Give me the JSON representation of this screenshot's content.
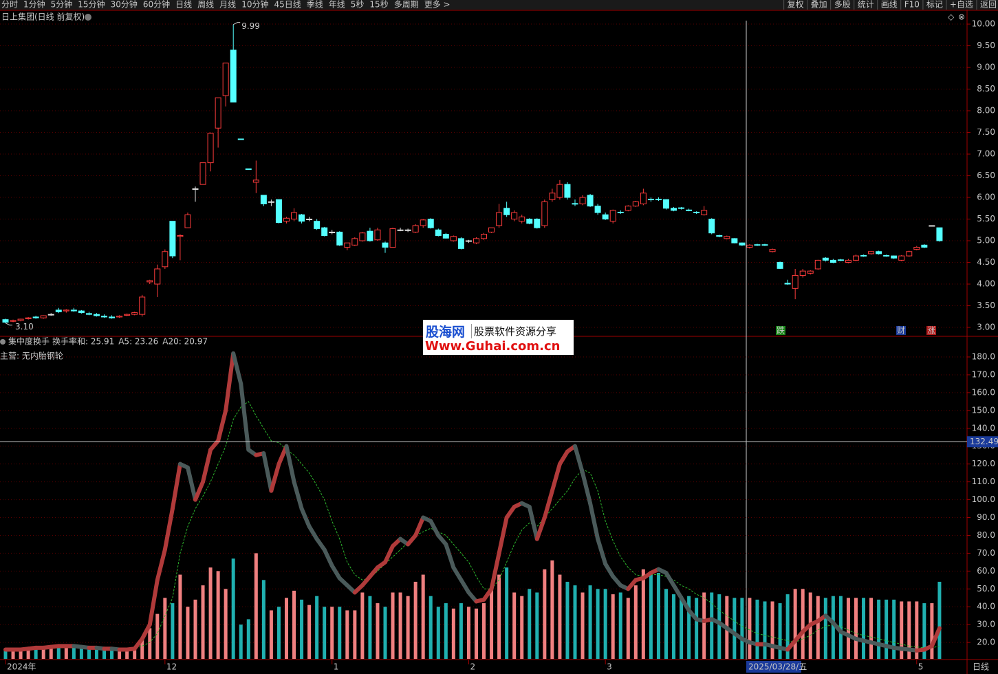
{
  "toolbar": {
    "tabs": [
      "分时",
      "1分钟",
      "5分钟",
      "15分钟",
      "30分钟",
      "60分钟",
      "日线",
      "周线",
      "月线",
      "10分钟",
      "45日线",
      "季线",
      "年线",
      "5秒",
      "15秒",
      "多周期",
      "更多 >"
    ],
    "tools": [
      "复权",
      "叠加",
      "多股",
      "统计",
      "画线",
      "F10",
      "标记",
      "+自选",
      "返回"
    ]
  },
  "period_label": "日线",
  "watermark": {
    "brand": "股海网",
    "slogan": "股票软件资源分享",
    "url": "Www.Guhai.com.cn"
  },
  "chart_data": [
    {
      "type": "candlestick",
      "title": "日上集团(日线 前复权)",
      "categories": [
        "2024年",
        null,
        null,
        null,
        null,
        null,
        null,
        null,
        null,
        null,
        null,
        null,
        null,
        null,
        null,
        null,
        null,
        null,
        null,
        null,
        null,
        "12",
        null,
        null,
        null,
        null,
        null,
        null,
        null,
        null,
        null,
        null,
        null,
        null,
        null,
        null,
        null,
        null,
        null,
        null,
        null,
        null,
        null,
        "1",
        null,
        null,
        null,
        null,
        null,
        null,
        null,
        null,
        null,
        null,
        null,
        null,
        null,
        null,
        null,
        null,
        null,
        "2",
        null,
        null,
        null,
        null,
        null,
        null,
        null,
        null,
        null,
        null,
        null,
        null,
        null,
        null,
        null,
        null,
        null,
        "3",
        null,
        null,
        null,
        null,
        null,
        null,
        null,
        null,
        null,
        null,
        null,
        null,
        null,
        null,
        null,
        null,
        null,
        null,
        null,
        null,
        null,
        null,
        null,
        null,
        null,
        null,
        null,
        null,
        null,
        null,
        null,
        null,
        null,
        null,
        null,
        null,
        null,
        null,
        null,
        null,
        "5",
        null,
        null,
        null
      ],
      "open": [
        3.18,
        3.14,
        3.16,
        3.2,
        3.24,
        3.22,
        3.3,
        3.4,
        3.38,
        3.4,
        3.38,
        3.32,
        3.3,
        3.26,
        3.24,
        3.24,
        3.28,
        3.3,
        3.3,
        4.05,
        4.0,
        4.4,
        5.45,
        5.1,
        5.3,
        6.2,
        6.3,
        6.8,
        7.6,
        8.35,
        9.4,
        7.35,
        6.66,
        6.35,
        6.05,
        5.9,
        5.95,
        5.45,
        5.5,
        5.6,
        5.5,
        5.45,
        5.3,
        5.2,
        5.2,
        4.85,
        4.9,
        5.0,
        5.22,
        5.02,
        4.95,
        4.85,
        5.25,
        5.25,
        5.2,
        5.35,
        5.5,
        5.25,
        5.15,
        5.0,
        5.05,
        5.0,
        4.95,
        5.05,
        5.2,
        5.35,
        5.75,
        5.5,
        5.45,
        5.5,
        5.5,
        5.35,
        5.95,
        6.0,
        6.3,
        5.86,
        5.85,
        6.05,
        5.8,
        5.6,
        5.45,
        5.66,
        5.7,
        5.8,
        5.85,
        5.96,
        5.96,
        5.95,
        5.75,
        5.76,
        5.71,
        5.66,
        5.6,
        5.5,
        5.12,
        5.05,
        5.05,
        4.95,
        4.85,
        4.91,
        4.91,
        4.75,
        4.5,
        4.02,
        3.9,
        4.2,
        4.25,
        4.35,
        4.6,
        4.55,
        4.56,
        4.5,
        4.55,
        4.66,
        4.7,
        4.75,
        4.66,
        4.65,
        4.55,
        4.65,
        4.8,
        4.9,
        5.35,
        5.3
      ],
      "high": [
        3.2,
        3.18,
        3.2,
        3.24,
        3.27,
        3.28,
        3.33,
        3.45,
        3.42,
        3.45,
        3.4,
        3.36,
        3.33,
        3.3,
        3.28,
        3.28,
        3.32,
        3.36,
        3.75,
        4.1,
        4.45,
        4.8,
        5.45,
        5.15,
        5.65,
        6.25,
        6.8,
        7.5,
        8.3,
        9.1,
        9.99,
        7.35,
        6.66,
        6.85,
        6.05,
        5.95,
        5.95,
        5.55,
        5.75,
        5.62,
        5.55,
        5.5,
        5.32,
        5.25,
        5.22,
        4.95,
        5.08,
        5.2,
        5.3,
        5.3,
        4.98,
        5.3,
        5.3,
        5.28,
        5.38,
        5.5,
        5.52,
        5.28,
        5.18,
        5.12,
        5.08,
        5.02,
        5.08,
        5.18,
        5.3,
        5.85,
        5.9,
        5.7,
        5.6,
        5.52,
        5.52,
        5.95,
        6.2,
        6.4,
        6.35,
        5.95,
        6.05,
        6.08,
        5.85,
        5.65,
        5.72,
        5.7,
        5.82,
        5.92,
        6.2,
        6.0,
        6.0,
        5.96,
        5.78,
        5.78,
        5.74,
        5.68,
        5.8,
        5.52,
        5.14,
        5.12,
        5.06,
        4.96,
        4.92,
        4.93,
        4.93,
        4.82,
        4.52,
        4.1,
        4.35,
        4.35,
        4.32,
        4.56,
        4.62,
        4.58,
        4.58,
        4.58,
        4.68,
        4.68,
        4.76,
        4.77,
        4.68,
        4.66,
        4.67,
        4.77,
        4.88,
        4.92,
        5.35,
        5.3
      ],
      "low": [
        3.1,
        3.12,
        3.14,
        3.18,
        3.2,
        3.2,
        3.27,
        3.33,
        3.34,
        3.36,
        3.32,
        3.28,
        3.25,
        3.22,
        3.2,
        3.22,
        3.26,
        3.28,
        3.25,
        4.0,
        3.7,
        4.35,
        4.6,
        4.55,
        5.3,
        5.9,
        6.3,
        6.6,
        7.15,
        8.1,
        8.2,
        7.33,
        6.64,
        6.1,
        5.8,
        5.8,
        5.4,
        5.4,
        5.45,
        5.4,
        5.45,
        5.25,
        5.1,
        5.15,
        4.88,
        4.78,
        4.88,
        4.98,
        4.98,
        5.0,
        4.72,
        4.85,
        5.22,
        5.2,
        5.18,
        5.3,
        5.28,
        5.1,
        5.05,
        4.98,
        4.8,
        4.95,
        4.92,
        5.02,
        5.18,
        5.3,
        5.55,
        5.45,
        5.4,
        5.38,
        5.28,
        5.3,
        5.9,
        5.95,
        5.95,
        5.8,
        5.82,
        5.78,
        5.6,
        5.48,
        5.4,
        5.62,
        5.68,
        5.78,
        5.82,
        5.9,
        5.92,
        5.72,
        5.68,
        5.72,
        5.68,
        5.62,
        5.58,
        5.15,
        5.08,
        5.03,
        4.94,
        4.88,
        4.82,
        4.88,
        4.88,
        4.73,
        4.35,
        3.98,
        3.65,
        4.15,
        4.22,
        4.33,
        4.52,
        4.48,
        4.53,
        4.48,
        4.53,
        4.63,
        4.68,
        4.68,
        4.63,
        4.58,
        4.53,
        4.63,
        4.78,
        4.83,
        5.34,
        4.98
      ],
      "close": [
        3.12,
        3.16,
        3.19,
        3.22,
        3.22,
        3.27,
        3.3,
        3.36,
        3.4,
        3.38,
        3.34,
        3.3,
        3.27,
        3.24,
        3.22,
        3.26,
        3.3,
        3.34,
        3.7,
        4.08,
        4.35,
        4.75,
        4.65,
        5.12,
        5.6,
        6.2,
        6.8,
        7.48,
        8.3,
        9.1,
        8.2,
        7.34,
        6.65,
        6.4,
        5.85,
        5.9,
        5.42,
        5.52,
        5.65,
        5.45,
        5.5,
        5.28,
        5.12,
        5.2,
        4.9,
        4.95,
        5.05,
        5.18,
        5.0,
        5.25,
        4.85,
        5.28,
        5.25,
        5.25,
        5.35,
        5.48,
        5.3,
        5.12,
        5.06,
        5.1,
        4.82,
        5.0,
        5.05,
        5.15,
        5.3,
        5.65,
        5.6,
        5.65,
        5.55,
        5.4,
        5.3,
        5.9,
        6.1,
        6.3,
        6.0,
        5.85,
        6.0,
        5.8,
        5.65,
        5.5,
        5.7,
        5.65,
        5.8,
        5.9,
        6.1,
        5.95,
        5.95,
        5.75,
        5.7,
        5.75,
        5.7,
        5.65,
        5.7,
        5.18,
        5.1,
        5.1,
        4.95,
        4.9,
        4.9,
        4.9,
        4.9,
        4.8,
        4.36,
        4.0,
        4.2,
        4.3,
        4.3,
        4.55,
        4.55,
        4.5,
        4.55,
        4.55,
        4.65,
        4.65,
        4.75,
        4.7,
        4.65,
        4.6,
        4.65,
        4.75,
        4.85,
        4.85,
        5.35,
        5.0
      ],
      "up_color": "#ff3c3c",
      "down_color": "#54ffff",
      "flat_color": "#e0e0e0",
      "ylim": [
        2.81,
        10.08
      ],
      "yticks": [
        {
          "value": 10,
          "label": "10.00"
        },
        {
          "value": 9.5,
          "label": "9.50"
        },
        {
          "value": 9,
          "label": "9.00"
        },
        {
          "value": 8.5,
          "label": "8.50"
        },
        {
          "value": 8,
          "label": "8.00"
        },
        {
          "value": 7.5,
          "label": "7.50"
        },
        {
          "value": 7,
          "label": "7.00"
        },
        {
          "value": 6.5,
          "label": "6.50"
        },
        {
          "value": 6,
          "label": "6.00"
        },
        {
          "value": 5.5,
          "label": "5.50"
        },
        {
          "value": 5,
          "label": "5.00"
        },
        {
          "value": 4.5,
          "label": "4.50"
        },
        {
          "value": 4,
          "label": "4.00"
        },
        {
          "value": 3.5,
          "label": "3.50"
        },
        {
          "value": 3,
          "label": "3.00"
        }
      ],
      "grid": true,
      "high_label": "9.99",
      "low_label": "3.10",
      "events": [
        "跌",
        "财",
        "涨"
      ],
      "crosshair_label": "2025/03/28/五"
    },
    {
      "type": "turnover",
      "title": "集中度换手",
      "legend": [
        {
          "text": "换手率和: 25.91",
          "color": "#e8e8e8"
        },
        {
          "text": "A5: 23.26",
          "color": "#ff4040"
        },
        {
          "text": "A20: 20.97",
          "color": "#40d040"
        }
      ],
      "note": "主营: 无内胎钢轮",
      "values": [
        16,
        17,
        16,
        17,
        18,
        17,
        17,
        18,
        18,
        18,
        17,
        17,
        16,
        17,
        17,
        16,
        17,
        17,
        22,
        28,
        36,
        45,
        42,
        58,
        40,
        44,
        52,
        62,
        60,
        50,
        67,
        30,
        33,
        70,
        55,
        38,
        40,
        45,
        49,
        44,
        41,
        46,
        40,
        40,
        40,
        38,
        38,
        48,
        46,
        42,
        40,
        48,
        48,
        46,
        54,
        58,
        46,
        40,
        42,
        39,
        42,
        40,
        39,
        42,
        50,
        58,
        62,
        48,
        46,
        50,
        48,
        61,
        66,
        58,
        54,
        52,
        48,
        52,
        50,
        50,
        47,
        48,
        45,
        52,
        61,
        58,
        59,
        50,
        47,
        46,
        46,
        45,
        48,
        48,
        47,
        46,
        45,
        45,
        45,
        44,
        43,
        43,
        42,
        47,
        50,
        50,
        48,
        46,
        45,
        46,
        46,
        45,
        45,
        45,
        45,
        44,
        44,
        44,
        43,
        43,
        43,
        42,
        42,
        54
      ],
      "up_color": "#f08080",
      "down_color": "#20b0b0",
      "series": [
        {
          "name": "A5",
          "color": "#b03a3a",
          "fall_color": "#4a5a5a",
          "values": [
            16,
            16,
            16,
            16.5,
            17,
            17,
            17.5,
            18,
            18,
            18,
            17.5,
            17,
            17,
            16.5,
            16.5,
            16,
            16,
            16.5,
            22,
            30,
            55,
            72,
            95,
            120,
            118,
            100,
            110,
            128,
            133,
            150,
            182,
            165,
            128,
            125,
            126,
            105,
            120,
            130,
            110,
            95,
            85,
            78,
            72,
            63,
            56,
            52,
            48,
            52,
            57,
            62,
            65,
            74,
            78,
            75,
            80,
            90,
            88,
            80,
            75,
            62,
            55,
            48,
            43,
            44,
            50,
            70,
            90,
            96,
            98,
            96,
            78,
            90,
            105,
            120,
            127,
            130,
            115,
            98,
            78,
            64,
            57,
            52,
            50,
            55,
            56,
            59,
            61,
            59,
            52,
            45,
            38,
            33,
            32,
            33,
            31,
            28,
            25,
            22,
            20,
            19,
            19,
            18,
            17,
            16,
            21,
            26,
            30,
            32,
            35,
            31,
            26,
            24,
            22,
            21,
            20,
            19,
            18,
            17,
            16.5,
            16,
            15.5,
            16,
            18,
            28
          ]
        },
        {
          "name": "A20",
          "color": "#2db82d",
          "values": [
            16,
            16,
            16,
            16,
            16.5,
            16.5,
            17,
            17,
            17,
            17,
            17,
            17,
            17,
            17,
            16.5,
            16.5,
            16.5,
            16.5,
            18,
            20,
            25,
            35,
            45,
            70,
            85,
            95,
            102,
            110,
            120,
            130,
            145,
            152,
            155,
            147,
            140,
            133,
            132,
            128,
            125,
            120,
            115,
            108,
            100,
            88,
            78,
            65,
            58,
            55,
            56,
            60,
            64,
            68,
            72,
            76,
            80,
            82,
            84,
            82,
            80,
            75,
            70,
            65,
            57,
            50,
            50,
            55,
            65,
            75,
            83,
            87,
            85,
            90,
            95,
            100,
            105,
            112,
            117,
            115,
            105,
            88,
            77,
            68,
            62,
            58,
            57,
            58,
            58,
            57,
            55,
            52,
            50,
            47,
            45,
            42,
            38,
            35,
            32,
            29,
            27,
            25,
            24,
            23,
            22,
            21,
            20,
            22,
            24,
            27,
            29,
            30,
            29,
            27,
            25,
            24,
            23,
            22,
            21,
            20,
            19,
            18,
            17.5,
            17,
            17,
            18
          ]
        }
      ],
      "ylim": [
        10.8,
        185.4
      ],
      "yticks": [
        {
          "value": 180,
          "label": "180.0"
        },
        {
          "value": 170,
          "label": "170.0"
        },
        {
          "value": 160,
          "label": "160.0"
        },
        {
          "value": 150,
          "label": "150.0"
        },
        {
          "value": 140,
          "label": "140.0"
        },
        {
          "value": 130,
          "label": "130.0"
        },
        {
          "value": 120,
          "label": "120.0"
        },
        {
          "value": 110,
          "label": "110.0"
        },
        {
          "value": 100,
          "label": "100.0"
        },
        {
          "value": 90,
          "label": "90.0"
        },
        {
          "value": 80,
          "label": "80.0"
        },
        {
          "value": 70,
          "label": "70.0"
        },
        {
          "value": 60,
          "label": "60.0"
        },
        {
          "value": 50,
          "label": "50.0"
        },
        {
          "value": 40,
          "label": "40.0"
        },
        {
          "value": 30,
          "label": "30.0"
        },
        {
          "value": 20,
          "label": "20.0"
        }
      ],
      "grid": true,
      "crosshair_value": 132.49
    }
  ]
}
